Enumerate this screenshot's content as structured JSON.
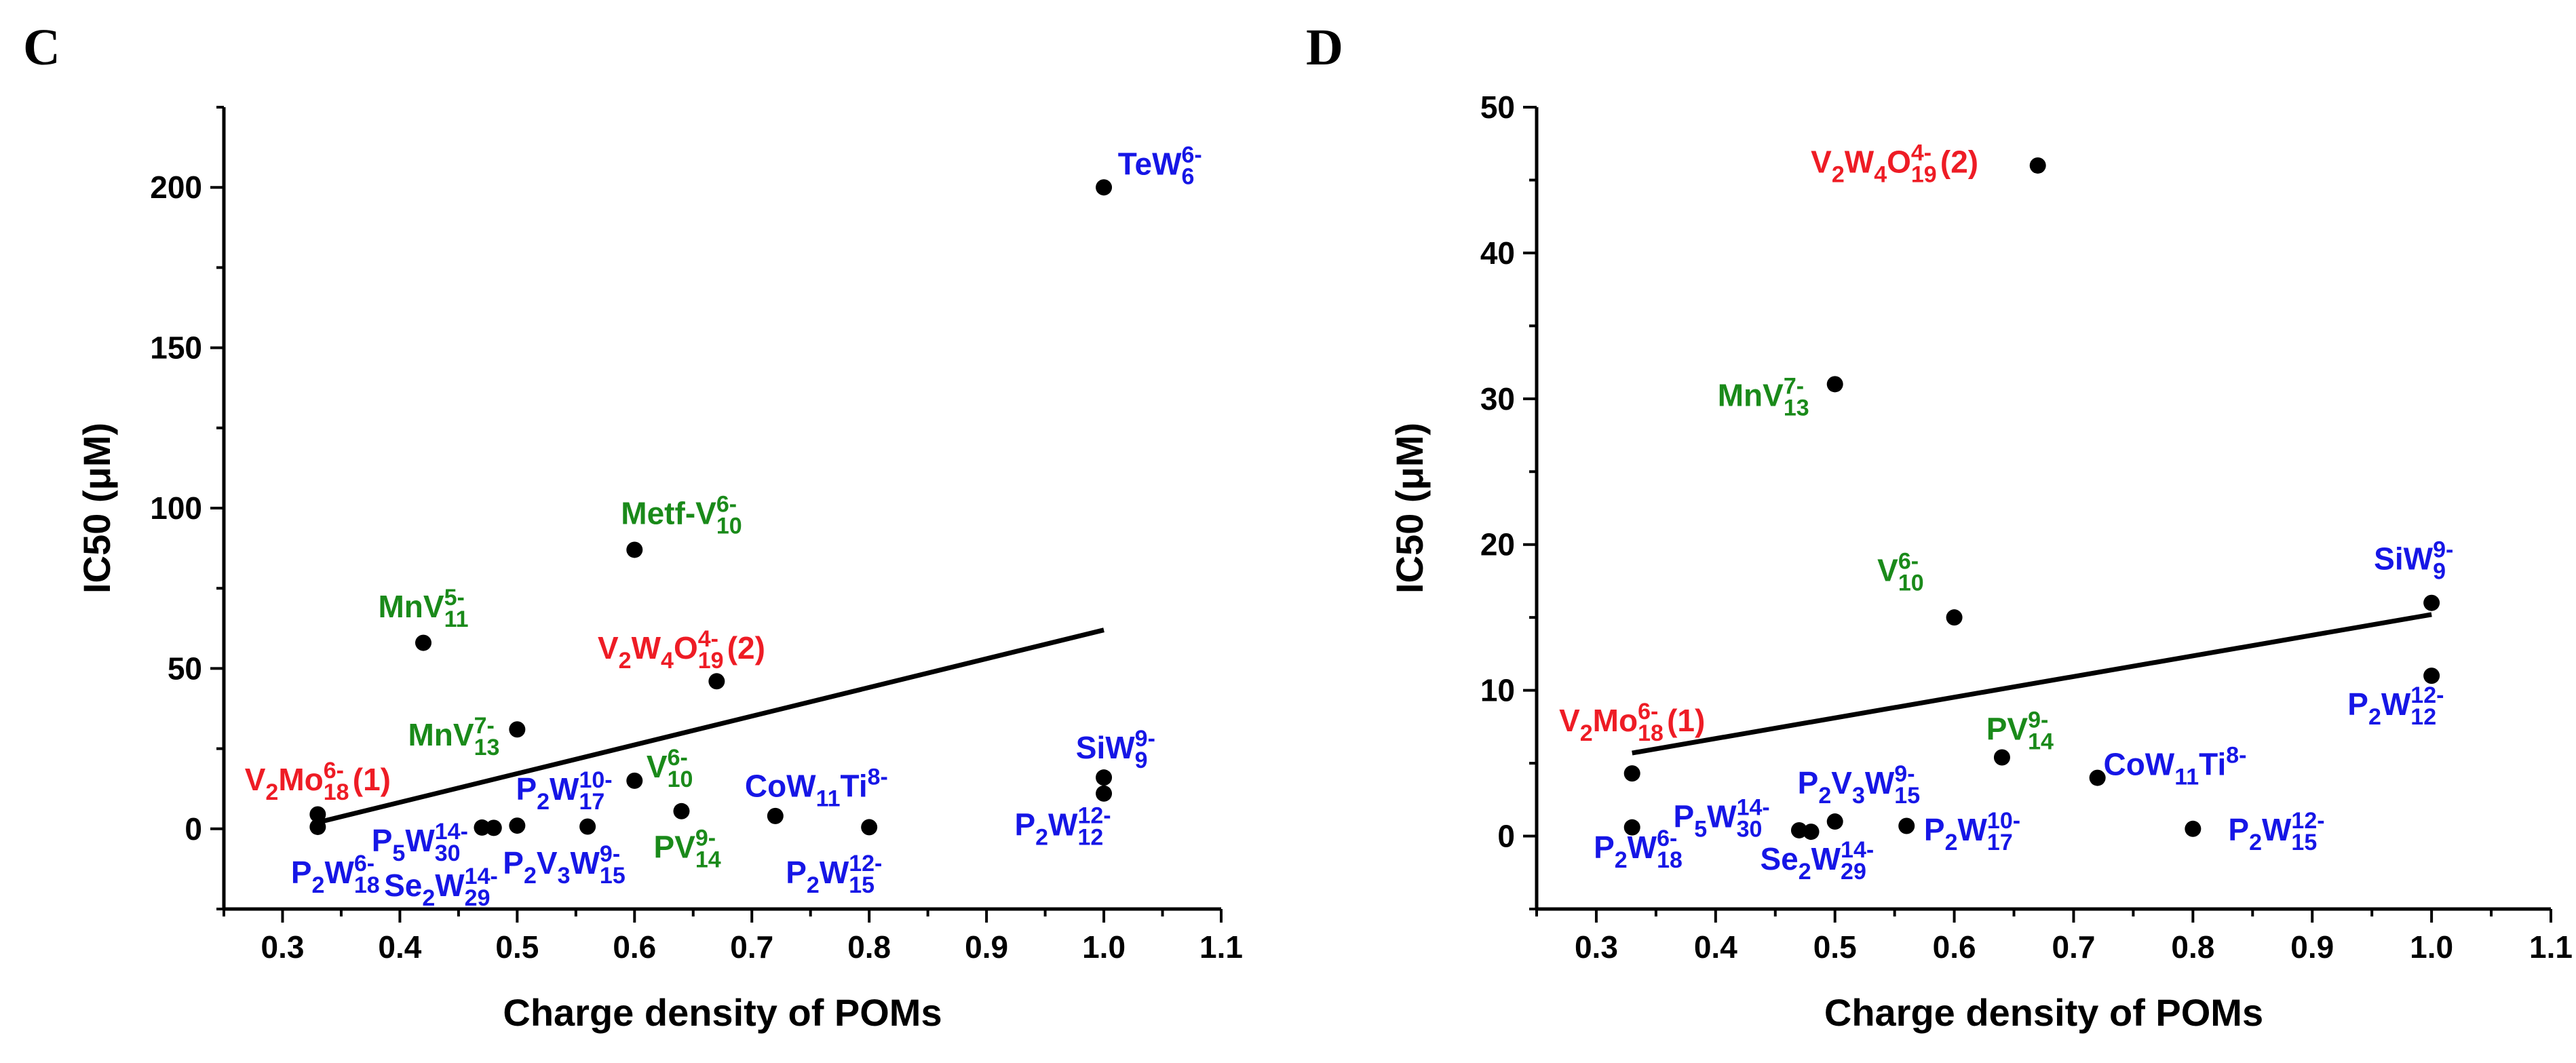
{
  "colors": {
    "red": "#ee1c25",
    "green": "#1a8a1a",
    "blue": "#1616e6",
    "black": "#000000"
  },
  "chart_data": [
    {
      "panel": "C",
      "type": "scatter",
      "xlabel": "Charge density of POMs",
      "ylabel": "IC50 (μM)",
      "xlim": [
        0.25,
        1.1
      ],
      "ylim": [
        -25,
        225
      ],
      "xticks": [
        "0.3",
        "0.4",
        "0.5",
        "0.6",
        "0.7",
        "0.8",
        "0.9",
        "1.0",
        "1.1"
      ],
      "yticks": [
        "0",
        "50",
        "100",
        "150",
        "200"
      ],
      "points": [
        {
          "x": 0.33,
          "y": 4.5
        },
        {
          "x": 0.33,
          "y": 0.6
        },
        {
          "x": 0.42,
          "y": 58
        },
        {
          "x": 0.47,
          "y": 0.4
        },
        {
          "x": 0.48,
          "y": 0.3
        },
        {
          "x": 0.5,
          "y": 31
        },
        {
          "x": 0.5,
          "y": 1.0
        },
        {
          "x": 0.56,
          "y": 0.7
        },
        {
          "x": 0.6,
          "y": 87
        },
        {
          "x": 0.6,
          "y": 15
        },
        {
          "x": 0.64,
          "y": 5.5
        },
        {
          "x": 0.67,
          "y": 46
        },
        {
          "x": 0.72,
          "y": 4.0
        },
        {
          "x": 0.8,
          "y": 0.5
        },
        {
          "x": 1.0,
          "y": 200
        },
        {
          "x": 1.0,
          "y": 16
        },
        {
          "x": 1.0,
          "y": 11
        }
      ],
      "fit_line": {
        "x": [
          0.33,
          1.0
        ],
        "y": [
          2,
          62
        ]
      },
      "annotations": [
        {
          "parts": [
            [
              "TeW",
              "n"
            ],
            [
              "6",
              "sub"
            ],
            [
              "6-",
              "sup"
            ]
          ],
          "color": "blue",
          "x": 1.012,
          "y": 204,
          "anchor": "start"
        },
        {
          "parts": [
            [
              "Metf-V",
              "n"
            ],
            [
              "10",
              "sub"
            ],
            [
              "6-",
              "sup"
            ]
          ],
          "color": "green",
          "x": 0.64,
          "y": 95,
          "anchor": "middle"
        },
        {
          "parts": [
            [
              "MnV",
              "n"
            ],
            [
              "11",
              "sub"
            ],
            [
              "5-",
              "sup"
            ]
          ],
          "color": "green",
          "x": 0.42,
          "y": 66,
          "anchor": "middle"
        },
        {
          "parts": [
            [
              "V",
              "n"
            ],
            [
              "2",
              "sub"
            ],
            [
              "W",
              "n"
            ],
            [
              "4",
              "sub"
            ],
            [
              "O",
              "n"
            ],
            [
              "19",
              "sub"
            ],
            [
              "4-",
              "sup"
            ],
            [
              " (2)",
              "n"
            ]
          ],
          "color": "red",
          "x": 0.64,
          "y": 53,
          "anchor": "middle"
        },
        {
          "parts": [
            [
              "MnV",
              "n"
            ],
            [
              "13",
              "sub"
            ],
            [
              "7-",
              "sup"
            ]
          ],
          "color": "green",
          "x": 0.485,
          "y": 26,
          "anchor": "end"
        },
        {
          "parts": [
            [
              "V",
              "n"
            ],
            [
              "2",
              "sub"
            ],
            [
              "Mo",
              "n"
            ],
            [
              "18",
              "sub"
            ],
            [
              "6-",
              "sup"
            ],
            [
              " (1)",
              "n"
            ]
          ],
          "color": "red",
          "x": 0.33,
          "y": 12,
          "anchor": "middle"
        },
        {
          "parts": [
            [
              "V",
              "n"
            ],
            [
              "10",
              "sub"
            ],
            [
              "6-",
              "sup"
            ]
          ],
          "color": "green",
          "x": 0.63,
          "y": 16,
          "anchor": "middle"
        },
        {
          "parts": [
            [
              "P",
              "n"
            ],
            [
              "2",
              "sub"
            ],
            [
              "W",
              "n"
            ],
            [
              "17",
              "sub"
            ],
            [
              "10-",
              "sup"
            ]
          ],
          "color": "blue",
          "x": 0.54,
          "y": 9,
          "anchor": "middle"
        },
        {
          "parts": [
            [
              "CoW",
              "n"
            ],
            [
              "11",
              "sub"
            ],
            [
              "Ti",
              "n"
            ],
            [
              "8-",
              "sup"
            ]
          ],
          "color": "blue",
          "x": 0.755,
          "y": 10,
          "anchor": "middle"
        },
        {
          "parts": [
            [
              "SiW",
              "n"
            ],
            [
              "9",
              "sub"
            ],
            [
              "9-",
              "sup"
            ]
          ],
          "color": "blue",
          "x": 1.01,
          "y": 22,
          "anchor": "middle"
        },
        {
          "parts": [
            [
              "P",
              "n"
            ],
            [
              "5",
              "sub"
            ],
            [
              "W",
              "n"
            ],
            [
              "30",
              "sub"
            ],
            [
              "14-",
              "sup"
            ]
          ],
          "color": "blue",
          "x": 0.417,
          "y": -7,
          "anchor": "middle"
        },
        {
          "parts": [
            [
              "P",
              "n"
            ],
            [
              "2",
              "sub"
            ],
            [
              "V",
              "n"
            ],
            [
              "3",
              "sub"
            ],
            [
              "W",
              "n"
            ],
            [
              "15",
              "sub"
            ],
            [
              "9-",
              "sup"
            ]
          ],
          "color": "blue",
          "x": 0.54,
          "y": -14,
          "anchor": "middle"
        },
        {
          "parts": [
            [
              "PV",
              "n"
            ],
            [
              "14",
              "sub"
            ],
            [
              "9-",
              "sup"
            ]
          ],
          "color": "green",
          "x": 0.645,
          "y": -9,
          "anchor": "middle"
        },
        {
          "parts": [
            [
              "P",
              "n"
            ],
            [
              "2",
              "sub"
            ],
            [
              "W",
              "n"
            ],
            [
              "18",
              "sub"
            ],
            [
              "6-",
              "sup"
            ]
          ],
          "color": "blue",
          "x": 0.345,
          "y": -17,
          "anchor": "middle"
        },
        {
          "parts": [
            [
              "Se",
              "n"
            ],
            [
              "2",
              "sub"
            ],
            [
              "W",
              "n"
            ],
            [
              "29",
              "sub"
            ],
            [
              "14-",
              "sup"
            ]
          ],
          "color": "blue",
          "x": 0.435,
          "y": -21,
          "anchor": "middle"
        },
        {
          "parts": [
            [
              "P",
              "n"
            ],
            [
              "2",
              "sub"
            ],
            [
              "W",
              "n"
            ],
            [
              "15",
              "sub"
            ],
            [
              "12-",
              "sup"
            ]
          ],
          "color": "blue",
          "x": 0.77,
          "y": -17,
          "anchor": "middle"
        },
        {
          "parts": [
            [
              "P",
              "n"
            ],
            [
              "2",
              "sub"
            ],
            [
              "W",
              "n"
            ],
            [
              "12",
              "sub"
            ],
            [
              "12-",
              "sup"
            ]
          ],
          "color": "blue",
          "x": 0.965,
          "y": -2,
          "anchor": "middle"
        }
      ]
    },
    {
      "panel": "D",
      "type": "scatter",
      "xlabel": "Charge density of POMs",
      "ylabel": "IC50 (μM)",
      "xlim": [
        0.25,
        1.1
      ],
      "ylim": [
        -5,
        50
      ],
      "xticks": [
        "0.3",
        "0.4",
        "0.5",
        "0.6",
        "0.7",
        "0.8",
        "0.9",
        "1.0",
        "1.1"
      ],
      "yticks": [
        "0",
        "10",
        "20",
        "30",
        "40",
        "50"
      ],
      "points": [
        {
          "x": 0.33,
          "y": 4.3
        },
        {
          "x": 0.33,
          "y": 0.6
        },
        {
          "x": 0.47,
          "y": 0.4
        },
        {
          "x": 0.48,
          "y": 0.3
        },
        {
          "x": 0.5,
          "y": 31
        },
        {
          "x": 0.5,
          "y": 1.0
        },
        {
          "x": 0.56,
          "y": 0.7
        },
        {
          "x": 0.6,
          "y": 15
        },
        {
          "x": 0.64,
          "y": 5.4
        },
        {
          "x": 0.67,
          "y": 46
        },
        {
          "x": 0.72,
          "y": 4.0
        },
        {
          "x": 0.8,
          "y": 0.5
        },
        {
          "x": 1.0,
          "y": 16
        },
        {
          "x": 1.0,
          "y": 11
        }
      ],
      "fit_line": {
        "x": [
          0.33,
          1.0
        ],
        "y": [
          5.7,
          15.2
        ]
      },
      "annotations": [
        {
          "parts": [
            [
              "V",
              "n"
            ],
            [
              "2",
              "sub"
            ],
            [
              "W",
              "n"
            ],
            [
              "4",
              "sub"
            ],
            [
              "O",
              "n"
            ],
            [
              "19",
              "sub"
            ],
            [
              "4-",
              "sup"
            ],
            [
              " (2)",
              "n"
            ]
          ],
          "color": "red",
          "x": 0.55,
          "y": 45.5,
          "anchor": "middle"
        },
        {
          "parts": [
            [
              "MnV",
              "n"
            ],
            [
              "13",
              "sub"
            ],
            [
              "7-",
              "sup"
            ]
          ],
          "color": "green",
          "x": 0.44,
          "y": 29.5,
          "anchor": "middle"
        },
        {
          "parts": [
            [
              "V",
              "n"
            ],
            [
              "10",
              "sub"
            ],
            [
              "6-",
              "sup"
            ]
          ],
          "color": "green",
          "x": 0.555,
          "y": 17.5,
          "anchor": "middle"
        },
        {
          "parts": [
            [
              "SiW",
              "n"
            ],
            [
              "9",
              "sub"
            ],
            [
              "9-",
              "sup"
            ]
          ],
          "color": "blue",
          "x": 0.985,
          "y": 18.3,
          "anchor": "middle"
        },
        {
          "parts": [
            [
              "V",
              "n"
            ],
            [
              "2",
              "sub"
            ],
            [
              "Mo",
              "n"
            ],
            [
              "18",
              "sub"
            ],
            [
              "6-",
              "sup"
            ],
            [
              " (1)",
              "n"
            ]
          ],
          "color": "red",
          "x": 0.33,
          "y": 7.2,
          "anchor": "middle"
        },
        {
          "parts": [
            [
              "P",
              "n"
            ],
            [
              "2",
              "sub"
            ],
            [
              "W",
              "n"
            ],
            [
              "12",
              "sub"
            ],
            [
              "12-",
              "sup"
            ]
          ],
          "color": "blue",
          "x": 0.97,
          "y": 8.3,
          "anchor": "middle"
        },
        {
          "parts": [
            [
              "PV",
              "n"
            ],
            [
              "14",
              "sub"
            ],
            [
              "9-",
              "sup"
            ]
          ],
          "color": "green",
          "x": 0.655,
          "y": 6.6,
          "anchor": "middle"
        },
        {
          "parts": [
            [
              "CoW",
              "n"
            ],
            [
              "11",
              "sub"
            ],
            [
              "Ti",
              "n"
            ],
            [
              "8-",
              "sup"
            ]
          ],
          "color": "blue",
          "x": 0.785,
          "y": 4.2,
          "anchor": "middle"
        },
        {
          "parts": [
            [
              "P",
              "n"
            ],
            [
              "2",
              "sub"
            ],
            [
              "V",
              "n"
            ],
            [
              "3",
              "sub"
            ],
            [
              "W",
              "n"
            ],
            [
              "15",
              "sub"
            ],
            [
              "9-",
              "sup"
            ]
          ],
          "color": "blue",
          "x": 0.52,
          "y": 2.9,
          "anchor": "middle"
        },
        {
          "parts": [
            [
              "P",
              "n"
            ],
            [
              "5",
              "sub"
            ],
            [
              "W",
              "n"
            ],
            [
              "30",
              "sub"
            ],
            [
              "14-",
              "sup"
            ]
          ],
          "color": "blue",
          "x": 0.405,
          "y": 0.6,
          "anchor": "middle"
        },
        {
          "parts": [
            [
              "P",
              "n"
            ],
            [
              "2",
              "sub"
            ],
            [
              "W",
              "n"
            ],
            [
              "18",
              "sub"
            ],
            [
              "6-",
              "sup"
            ]
          ],
          "color": "blue",
          "x": 0.335,
          "y": -1.5,
          "anchor": "middle"
        },
        {
          "parts": [
            [
              "Se",
              "n"
            ],
            [
              "2",
              "sub"
            ],
            [
              "W",
              "n"
            ],
            [
              "29",
              "sub"
            ],
            [
              "14-",
              "sup"
            ]
          ],
          "color": "blue",
          "x": 0.485,
          "y": -2.3,
          "anchor": "middle"
        },
        {
          "parts": [
            [
              "P",
              "n"
            ],
            [
              "2",
              "sub"
            ],
            [
              "W",
              "n"
            ],
            [
              "17",
              "sub"
            ],
            [
              "10-",
              "sup"
            ]
          ],
          "color": "blue",
          "x": 0.615,
          "y": -0.3,
          "anchor": "middle"
        },
        {
          "parts": [
            [
              "P",
              "n"
            ],
            [
              "2",
              "sub"
            ],
            [
              "W",
              "n"
            ],
            [
              "15",
              "sub"
            ],
            [
              "12-",
              "sup"
            ]
          ],
          "color": "blue",
          "x": 0.87,
          "y": -0.3,
          "anchor": "middle"
        }
      ]
    }
  ]
}
